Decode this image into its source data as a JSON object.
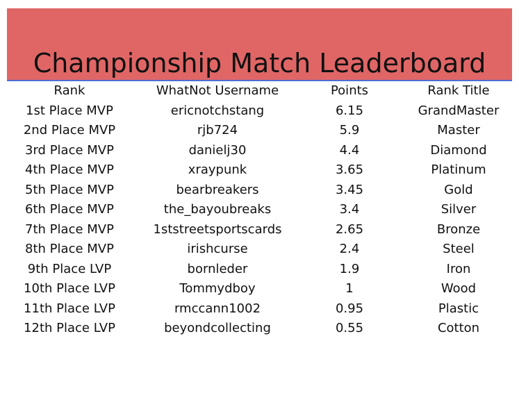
{
  "header": {
    "title": "Championship Match Leaderboard"
  },
  "table": {
    "columns": [
      "Rank",
      "WhatNot Username",
      "Points",
      "Rank Title"
    ],
    "rows": [
      [
        "1st Place MVP",
        "ericnotchstang",
        6.15,
        "GrandMaster"
      ],
      [
        "2nd Place MVP",
        "rjb724",
        5.9,
        "Master"
      ],
      [
        "3rd Place MVP",
        "danielj30",
        4.4,
        "Diamond"
      ],
      [
        "4th Place MVP",
        "xraypunk",
        3.65,
        "Platinum"
      ],
      [
        "5th Place MVP",
        "bearbreakers",
        3.45,
        "Gold"
      ],
      [
        "6th Place MVP",
        "the_bayoubreaks",
        3.4,
        "Silver"
      ],
      [
        "7th Place MVP",
        "1ststreetsportscards",
        2.65,
        "Bronze"
      ],
      [
        "8th Place MVP",
        "irishcurse",
        2.4,
        "Steel"
      ],
      [
        "9th Place LVP",
        "bornleder",
        1.9,
        "Iron"
      ],
      [
        "10th Place LVP",
        "Tommydboy",
        1,
        "Wood"
      ],
      [
        "11th Place LVP",
        "rmccann1002",
        0.95,
        "Plastic"
      ],
      [
        "12th Place LVP",
        "beyondcollecting",
        0.55,
        "Cotton"
      ]
    ]
  }
}
